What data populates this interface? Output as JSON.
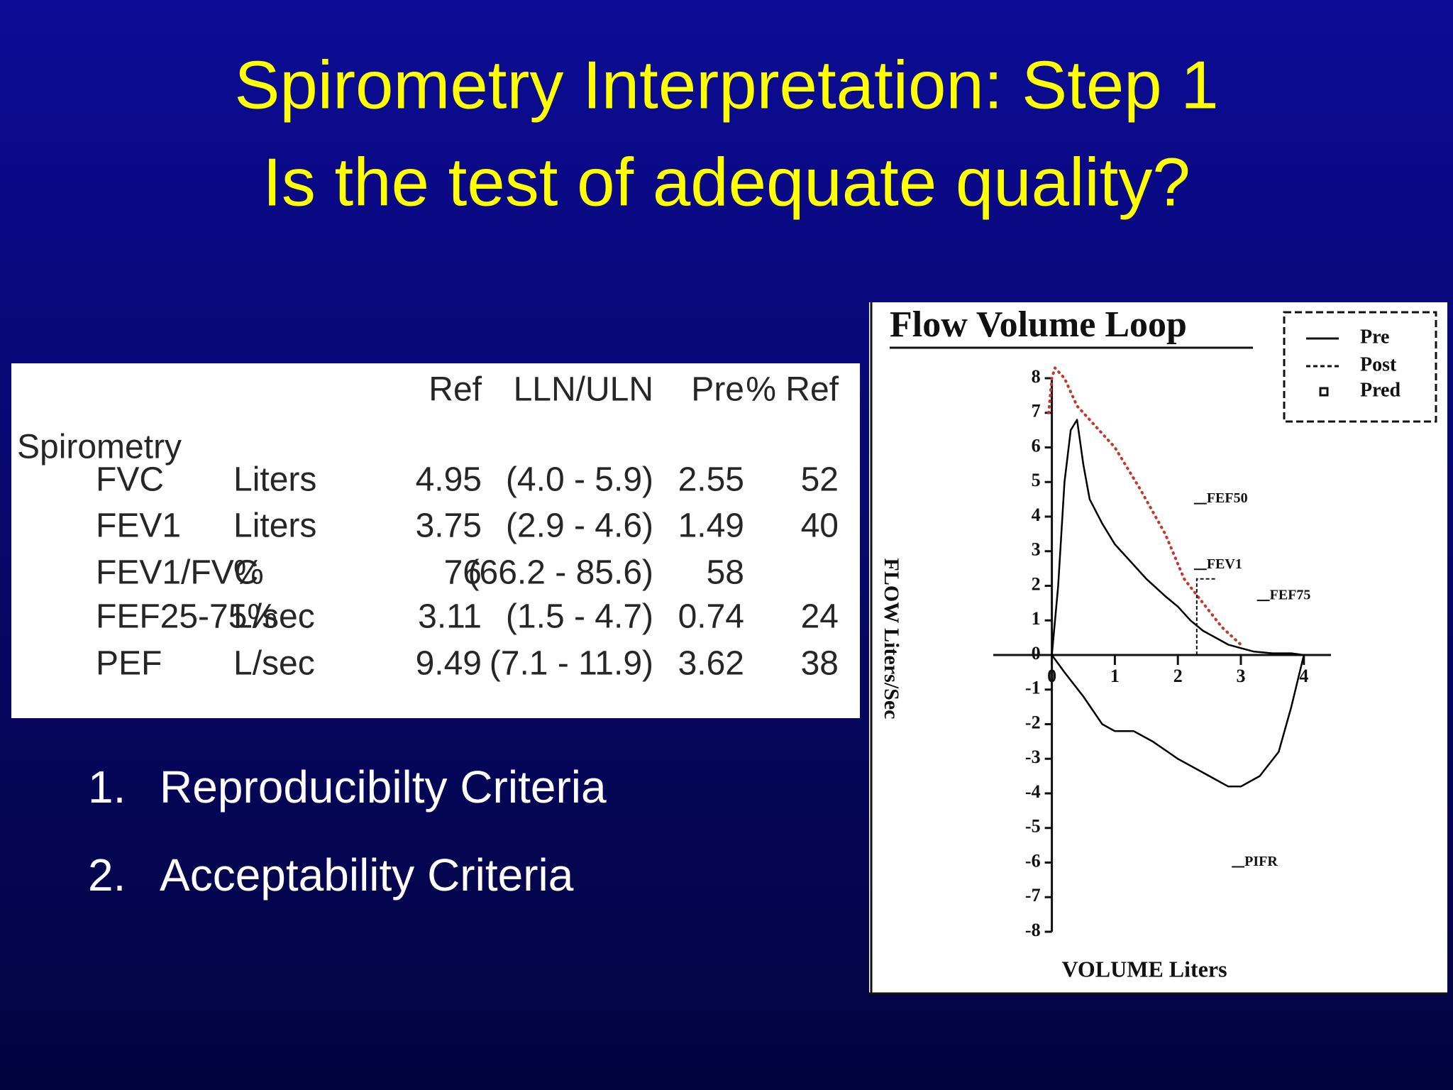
{
  "slide": {
    "title": [
      "Spirometry Interpretation:  Step 1",
      "Is the test of adequate quality?"
    ],
    "list": [
      "Reproducibilty Criteria",
      "Acceptability Criteria"
    ],
    "list_numbers": [
      "1.",
      "2."
    ]
  },
  "table": {
    "header": [
      "Ref",
      "LLN/ULN",
      "Pre",
      "% Ref"
    ],
    "section": "Spirometry",
    "rows": [
      [
        "FVC",
        "Liters",
        "4.95",
        "(4.0 - 5.9)",
        "2.55",
        "52"
      ],
      [
        "FEV1",
        "Liters",
        "3.75",
        "(2.9 - 4.6)",
        "1.49",
        "40"
      ],
      [
        "FEV1/FVC",
        "%",
        "76",
        "(66.2 - 85.6)",
        "58",
        null
      ],
      [
        "FEF25-75%",
        "L/sec",
        "3.11",
        "(1.5 - 4.7)",
        "0.74",
        "24"
      ],
      [
        "PEF",
        "L/sec",
        "9.49",
        "(7.1 - 11.9)",
        "3.62",
        "38"
      ]
    ]
  },
  "chart_data": {
    "type": "line",
    "title": "Flow Volume Loop",
    "y_label": "FLOW   Liters/Sec",
    "x_label": "VOLUME   Liters",
    "legend": [
      "Pre",
      "Post",
      "Pred"
    ],
    "annotations": [
      "FEF50",
      "FEV1",
      "FEF75",
      "PIFR"
    ],
    "xlim": [
      -0.93,
      4.43
    ],
    "ylim": [
      -8,
      8
    ],
    "xticks": [
      0,
      1,
      2,
      3,
      4
    ],
    "yticks": [
      8,
      7,
      6,
      5,
      4,
      3,
      2,
      1,
      0,
      -1,
      -2,
      -3,
      -4,
      -5,
      -6,
      -7,
      -8
    ],
    "series": [
      {
        "color": "#000000",
        "dash": "solid",
        "x": [
          0,
          0.1,
          0.2,
          0.3,
          0.4,
          0.5,
          0.6,
          0.8,
          1.0,
          1.2,
          1.5,
          1.8,
          2.0,
          2.2,
          2.4,
          2.6,
          2.8,
          3.0,
          3.2,
          3.5,
          3.8,
          4.0,
          3.8,
          3.6,
          3.3,
          3.0,
          2.8,
          2.5,
          2.0,
          1.6,
          1.3,
          1.0,
          0.8,
          0.5,
          0.2,
          0
        ],
        "values": [
          0,
          2,
          5,
          6.5,
          6.8,
          5.5,
          4.5,
          3.8,
          3.2,
          2.8,
          2.2,
          1.7,
          1.4,
          1.0,
          0.7,
          0.5,
          0.3,
          0.2,
          0.1,
          0.05,
          0.05,
          0,
          -1.5,
          -2.8,
          -3.5,
          -3.8,
          -3.8,
          -3.5,
          -3.0,
          -2.5,
          -2.2,
          -2.2,
          -2.0,
          -1.2,
          -0.5,
          0
        ]
      },
      {
        "color": "#c0392b",
        "dash": "dotted",
        "x": [
          -0.05,
          0,
          0.05,
          0.2,
          0.4,
          0.6,
          1.0,
          1.4,
          1.8,
          2.1,
          2.4,
          2.7,
          3.0
        ],
        "values": [
          7,
          8,
          8.3,
          8,
          7.2,
          6.8,
          6,
          4.8,
          3.5,
          2.2,
          1.5,
          0.8,
          0.3
        ]
      }
    ]
  }
}
